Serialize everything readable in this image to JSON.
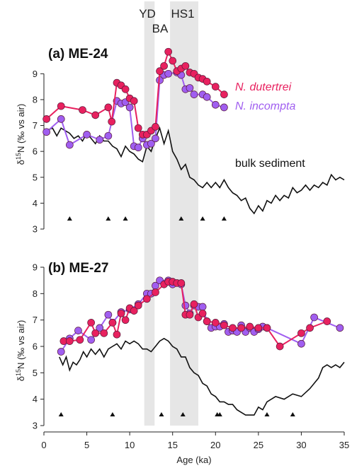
{
  "x_axis": {
    "label": "Age (ka)",
    "range": [
      0,
      35
    ],
    "ticks": [
      0,
      5,
      10,
      15,
      20,
      25,
      30,
      35
    ]
  },
  "y_axis": {
    "label_prefix": "δ",
    "label_sup": "15",
    "label_suffix": "N (‰ vs air)",
    "range": [
      3,
      9.5
    ],
    "ticks": [
      3,
      4,
      5,
      6,
      7,
      8,
      9
    ]
  },
  "bands": [
    {
      "name": "YD",
      "x0": 11.7,
      "x1": 12.9
    },
    {
      "name": "BA",
      "x0": 12.9,
      "x1": 14.7
    },
    {
      "name": "HS1",
      "x0": 14.7,
      "x1": 18.0
    }
  ],
  "colors": {
    "dutertrei": "#e8215f",
    "incompta": "#a05ef0",
    "bulk": "#111111",
    "band": "#e6e6e6"
  },
  "chart_data": [
    {
      "type": "line",
      "title": "(a) ME-24",
      "xlabel": "Age (ka)",
      "ylabel": "δ15N (‰ vs air)",
      "xlim": [
        0,
        35
      ],
      "ylim": [
        3,
        9.5
      ],
      "series": [
        {
          "name": "N. dutertrei",
          "x": [
            0.3,
            2.0,
            4.5,
            6.0,
            7.5,
            7.9,
            8.5,
            9.0,
            9.5,
            10.0,
            10.5,
            11.0,
            11.5,
            12.0,
            12.5,
            13.0,
            13.5,
            14.0,
            14.5,
            15.0,
            15.5,
            16.0,
            16.5,
            17.0,
            17.5,
            18.0,
            18.5,
            19.0,
            20.0,
            21.0
          ],
          "y": [
            7.25,
            7.75,
            7.6,
            7.4,
            7.7,
            7.15,
            8.65,
            8.55,
            8.4,
            8.05,
            7.95,
            6.9,
            6.65,
            6.65,
            6.8,
            6.95,
            9.1,
            9.3,
            9.85,
            9.5,
            9.1,
            9.2,
            9.3,
            9.05,
            9.0,
            8.85,
            8.8,
            8.7,
            8.5,
            8.2
          ]
        },
        {
          "name": "N. incompta",
          "x": [
            0.3,
            2.0,
            3.0,
            5.0,
            6.5,
            7.5,
            8.5,
            9.0,
            9.5,
            10.0,
            10.5,
            11.0,
            11.5,
            12.0,
            12.5,
            13.0,
            13.5,
            14.0,
            14.5,
            15.5,
            16.0,
            16.5,
            17.0,
            17.5,
            18.5,
            19.0,
            20.0,
            21.0
          ],
          "y": [
            6.75,
            7.25,
            6.25,
            6.65,
            6.45,
            6.6,
            7.95,
            7.85,
            7.9,
            7.7,
            6.2,
            6.15,
            6.5,
            6.25,
            6.3,
            6.5,
            8.75,
            8.95,
            9.0,
            9.05,
            8.95,
            8.4,
            8.45,
            8.2,
            8.2,
            8.1,
            7.8,
            7.7
          ]
        },
        {
          "name": "bulk sediment",
          "x": [
            0.3,
            1.0,
            1.5,
            2.0,
            2.5,
            3.0,
            3.5,
            4.0,
            4.5,
            5.0,
            5.5,
            6.0,
            6.5,
            7.0,
            7.5,
            8.0,
            8.5,
            9.0,
            9.5,
            10.0,
            10.5,
            11.0,
            11.5,
            12.0,
            12.5,
            13.0,
            13.5,
            14.0,
            14.5,
            15.0,
            15.5,
            16.0,
            16.5,
            17.0,
            17.5,
            18.0,
            18.5,
            19.0,
            19.5,
            20.0,
            20.5,
            21.0,
            21.5,
            22.0,
            22.5,
            23.0,
            23.5,
            24.0,
            24.5,
            25.0,
            25.5,
            26.0,
            26.5,
            27.0,
            27.5,
            28.0,
            28.5,
            29.0,
            29.5,
            30.0,
            30.5,
            31.0,
            31.5,
            32.0,
            32.5,
            33.0,
            33.5,
            34.0,
            34.5,
            35.0
          ],
          "y": [
            6.8,
            6.9,
            6.6,
            6.9,
            6.8,
            6.7,
            6.5,
            6.6,
            6.4,
            6.7,
            6.5,
            6.3,
            6.6,
            6.4,
            6.4,
            6.2,
            6.1,
            5.8,
            6.2,
            6.0,
            5.9,
            5.7,
            5.6,
            6.2,
            6.0,
            6.5,
            6.9,
            6.3,
            6.8,
            6.0,
            5.7,
            5.3,
            5.5,
            5.0,
            4.9,
            4.7,
            4.6,
            4.8,
            4.6,
            4.8,
            4.6,
            4.9,
            4.6,
            4.4,
            4.3,
            4.1,
            4.2,
            3.8,
            3.6,
            3.9,
            3.7,
            4.1,
            4.0,
            4.3,
            4.1,
            4.3,
            4.2,
            4.6,
            4.4,
            4.5,
            4.7,
            4.5,
            4.7,
            4.6,
            4.8,
            4.7,
            5.1,
            4.9,
            5.0,
            4.9
          ]
        }
      ],
      "markers_x": [
        3.0,
        7.5,
        9.5,
        16.0,
        18.5,
        21.0
      ]
    },
    {
      "type": "line",
      "title": "(b) ME-27",
      "xlabel": "Age (ka)",
      "ylabel": "δ15N (‰ vs air)",
      "xlim": [
        0,
        35
      ],
      "ylim": [
        3,
        9
      ],
      "series": [
        {
          "name": "N. dutertrei",
          "x": [
            2.3,
            3.0,
            4.2,
            5.5,
            6.0,
            7.0,
            8.0,
            8.5,
            9.0,
            9.5,
            10.0,
            10.5,
            11.0,
            12.0,
            13.0,
            14.0,
            14.5,
            15.0,
            15.5,
            16.0,
            16.5,
            17.0,
            17.5,
            18.0,
            18.5,
            19.0,
            20.0,
            21.0,
            22.0,
            23.0,
            24.0,
            25.0,
            26.0,
            27.5,
            30.0,
            31.0,
            33.0
          ],
          "y": [
            6.2,
            6.2,
            6.25,
            6.9,
            6.5,
            6.5,
            6.9,
            6.45,
            7.25,
            7.0,
            7.45,
            7.35,
            7.55,
            7.8,
            8.05,
            8.35,
            8.45,
            8.45,
            8.4,
            8.4,
            7.2,
            7.2,
            7.6,
            7.1,
            7.25,
            6.95,
            6.9,
            6.8,
            6.7,
            6.7,
            6.75,
            6.7,
            6.7,
            6.0,
            6.5,
            6.7,
            6.95
          ]
        },
        {
          "name": "N. incompta",
          "x": [
            2.0,
            3.0,
            4.0,
            5.5,
            6.5,
            7.5,
            8.0,
            9.0,
            10.0,
            11.0,
            12.0,
            12.5,
            13.0,
            13.5,
            14.5,
            15.0,
            16.0,
            16.5,
            17.0,
            17.5,
            18.0,
            18.5,
            19.0,
            19.5,
            20.0,
            20.5,
            21.0,
            21.5,
            22.0,
            22.5,
            23.0,
            23.5,
            24.0,
            24.5,
            25.0,
            25.5,
            26.0,
            30.0,
            31.5,
            34.5
          ],
          "y": [
            5.8,
            6.3,
            6.6,
            6.25,
            6.7,
            7.2,
            6.9,
            7.3,
            7.4,
            7.6,
            8.0,
            8.0,
            8.3,
            8.5,
            8.5,
            8.35,
            8.35,
            7.55,
            7.25,
            7.55,
            7.5,
            7.5,
            6.95,
            6.7,
            6.75,
            6.75,
            6.85,
            6.55,
            6.6,
            6.55,
            6.8,
            6.55,
            6.7,
            6.55,
            6.65,
            6.75,
            6.7,
            6.1,
            7.1,
            6.7
          ]
        },
        {
          "name": "bulk sediment",
          "x": [
            1.8,
            2.2,
            2.6,
            3.0,
            3.4,
            3.8,
            4.2,
            4.6,
            5.0,
            5.5,
            6.0,
            6.5,
            7.0,
            7.5,
            8.0,
            8.5,
            9.0,
            9.5,
            10.0,
            10.5,
            11.0,
            11.5,
            12.0,
            12.5,
            13.0,
            13.5,
            14.0,
            14.5,
            15.0,
            15.5,
            16.0,
            16.5,
            17.0,
            17.5,
            18.0,
            18.5,
            19.0,
            19.5,
            20.0,
            20.5,
            21.0,
            21.5,
            22.0,
            22.5,
            23.0,
            23.5,
            24.0,
            24.5,
            25.0,
            25.5,
            26.0,
            27.0,
            28.0,
            29.0,
            30.0,
            31.0,
            31.5,
            32.0,
            32.5,
            33.0,
            33.5,
            34.0,
            34.5,
            35.0
          ],
          "y": [
            5.6,
            5.3,
            5.6,
            5.1,
            5.4,
            5.3,
            5.5,
            5.8,
            5.6,
            5.9,
            5.7,
            5.9,
            5.6,
            5.9,
            6.0,
            6.1,
            5.9,
            6.2,
            6.1,
            6.2,
            6.1,
            5.9,
            5.9,
            5.8,
            6.0,
            6.2,
            6.3,
            6.2,
            6.0,
            5.9,
            5.6,
            5.6,
            5.2,
            5.0,
            4.9,
            4.6,
            4.5,
            4.2,
            4.1,
            3.9,
            3.9,
            3.8,
            3.8,
            3.6,
            3.5,
            3.4,
            3.4,
            3.4,
            3.7,
            3.6,
            3.9,
            4.1,
            4.0,
            4.2,
            4.1,
            4.4,
            4.6,
            4.8,
            5.2,
            5.3,
            5.2,
            5.3,
            5.2,
            5.4
          ]
        }
      ],
      "markers_x": [
        2.0,
        8.0,
        13.7,
        16.2,
        20.2,
        20.5,
        26.0,
        29.0
      ]
    }
  ]
}
